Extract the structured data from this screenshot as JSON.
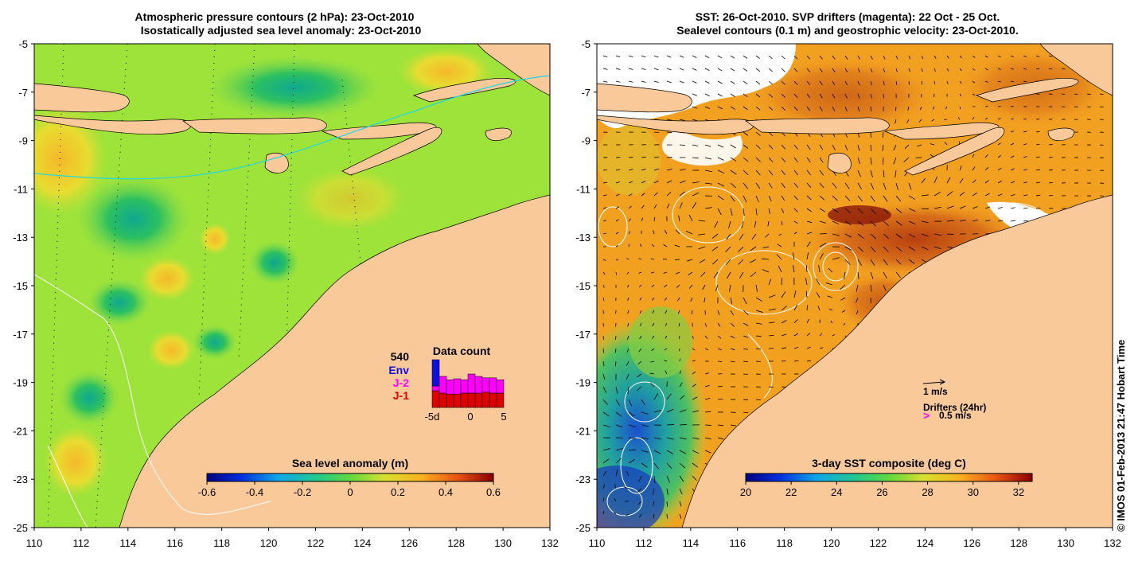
{
  "left_panel": {
    "title_line1": "Atmospheric pressure contours (2 hPa): 23-Oct-2010",
    "title_line2": "Isostatically adjusted sea level anomaly: 23-Oct-2010",
    "colorbar": {
      "label": "Sea level anomaly (m)",
      "ticks": [
        "-0.6",
        "-0.4",
        "-0.2",
        "0",
        "0.2",
        "0.4",
        "0.6"
      ],
      "range": [
        -0.6,
        0.6
      ]
    },
    "data_count": {
      "total": "540",
      "title": "Data count",
      "legend": [
        {
          "name": "Env",
          "color": "#1010e0"
        },
        {
          "name": "J-2",
          "color": "#ff00ff"
        },
        {
          "name": "J-1",
          "color": "#e00000"
        }
      ],
      "x_ticks": [
        "-5d",
        "0",
        "5"
      ],
      "bars": [
        {
          "env": 0.55,
          "j2": 0.1,
          "j1": 0.35
        },
        {
          "env": 0.0,
          "j2": 0.35,
          "j1": 0.3
        },
        {
          "env": 0.0,
          "j2": 0.3,
          "j1": 0.28
        },
        {
          "env": 0.0,
          "j2": 0.32,
          "j1": 0.28
        },
        {
          "env": 0.0,
          "j2": 0.28,
          "j1": 0.3
        },
        {
          "env": 0.0,
          "j2": 0.4,
          "j1": 0.3
        },
        {
          "env": 0.0,
          "j2": 0.35,
          "j1": 0.3
        },
        {
          "env": 0.0,
          "j2": 0.3,
          "j1": 0.32
        },
        {
          "env": 0.0,
          "j2": 0.32,
          "j1": 0.3
        },
        {
          "env": 0.0,
          "j2": 0.28,
          "j1": 0.3
        }
      ]
    }
  },
  "right_panel": {
    "title_line1": "SST: 26-Oct-2010. SVP drifters (magenta): 22 Oct - 25 Oct.",
    "title_line2": "Sealevel contours (0.1 m) and geostrophic velocity: 23-Oct-2010.",
    "colorbar": {
      "label": "3-day SST composite (deg C)",
      "ticks": [
        "20",
        "22",
        "24",
        "26",
        "28",
        "30",
        "32"
      ],
      "range": [
        20,
        32.6
      ]
    },
    "velocity_scale_label": "1 m/s",
    "drifters_label": "Drifters (24hr)",
    "drifter_speed_label": "0.5 m/s",
    "drifter_symbol": ">"
  },
  "axes": {
    "lon_ticks": [
      "110",
      "112",
      "114",
      "116",
      "118",
      "120",
      "122",
      "124",
      "126",
      "128",
      "130",
      "132"
    ],
    "lat_ticks": [
      "-5",
      "-7",
      "-9",
      "-11",
      "-13",
      "-15",
      "-17",
      "-19",
      "-21",
      "-23",
      "-25"
    ],
    "lon_range": [
      110,
      132
    ],
    "lat_range": [
      -5,
      -25
    ]
  },
  "credit": "© IMOS 01-Feb-2013 21:47 Hobart Time",
  "colors": {
    "land": "#f9c99a",
    "sla_base": "#9ee33a",
    "sst_base": "#f2a020",
    "velocity_arrow": "#000000",
    "contour_white": "#ffffff",
    "drifter": "#ff00ff"
  }
}
